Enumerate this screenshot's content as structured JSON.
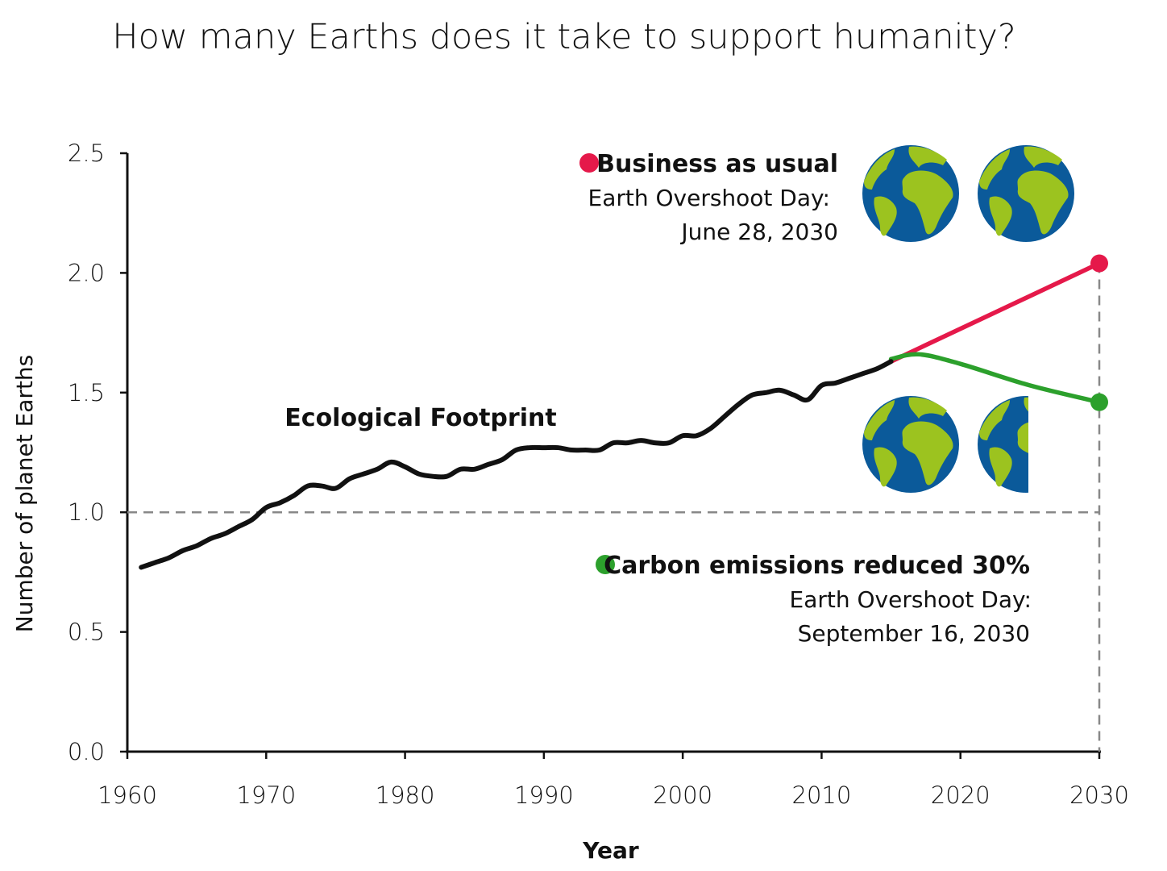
{
  "chart_data": {
    "type": "line",
    "title": "How many Earths does it take to support humanity?",
    "xlabel": "Year",
    "ylabel": "Number of planet Earths",
    "xlim": [
      1960,
      2030
    ],
    "ylim": [
      0,
      2.5
    ],
    "x_ticks": [
      "1960",
      "1970",
      "1980",
      "1990",
      "2000",
      "2010",
      "2020",
      "2030"
    ],
    "y_ticks": [
      "0.0",
      "0.5",
      "1.0",
      "1.5",
      "2.0",
      "2.5"
    ],
    "grid": false,
    "reference_line": {
      "y": 1.0,
      "style": "dashed",
      "color": "#888888"
    },
    "series": [
      {
        "name": "Ecological Footprint",
        "color": "#111111",
        "x": [
          1961,
          1962,
          1963,
          1964,
          1965,
          1966,
          1967,
          1968,
          1969,
          1970,
          1971,
          1972,
          1973,
          1974,
          1975,
          1976,
          1977,
          1978,
          1979,
          1980,
          1981,
          1982,
          1983,
          1984,
          1985,
          1986,
          1987,
          1988,
          1989,
          1990,
          1991,
          1992,
          1993,
          1994,
          1995,
          1996,
          1997,
          1998,
          1999,
          2000,
          2001,
          2002,
          2003,
          2004,
          2005,
          2006,
          2007,
          2008,
          2009,
          2010,
          2011,
          2012,
          2013,
          2014,
          2015
        ],
        "y": [
          0.77,
          0.79,
          0.81,
          0.84,
          0.86,
          0.89,
          0.91,
          0.94,
          0.97,
          1.02,
          1.04,
          1.07,
          1.11,
          1.11,
          1.1,
          1.14,
          1.16,
          1.18,
          1.21,
          1.19,
          1.16,
          1.15,
          1.15,
          1.18,
          1.18,
          1.2,
          1.22,
          1.26,
          1.27,
          1.27,
          1.27,
          1.26,
          1.26,
          1.26,
          1.29,
          1.29,
          1.3,
          1.29,
          1.29,
          1.32,
          1.32,
          1.35,
          1.4,
          1.45,
          1.49,
          1.5,
          1.51,
          1.49,
          1.47,
          1.53,
          1.54,
          1.56,
          1.58,
          1.6,
          1.63
        ]
      },
      {
        "name": "Business as usual",
        "color": "#e5194a",
        "x": [
          2015,
          2030
        ],
        "y": [
          1.63,
          2.04
        ]
      },
      {
        "name": "Carbon emissions reduced 30%",
        "color": "#2ca02c",
        "x": [
          2015,
          2017,
          2020,
          2025,
          2030
        ],
        "y": [
          1.64,
          1.66,
          1.62,
          1.53,
          1.46
        ]
      }
    ],
    "annotations": {
      "footprint_label": "Ecological Footprint",
      "bau": {
        "title": "Business as usual",
        "line1": "Earth Overshoot Day:",
        "line2": "June 28, 2030",
        "earths": 2.0
      },
      "reduced": {
        "title": "Carbon emissions reduced 30%",
        "line1": "Earth Overshoot Day:",
        "line2": "September 16, 2030",
        "earths": 1.5
      }
    },
    "globe_colors": {
      "ocean": "#0b5a9a",
      "land": "#9cc31f"
    }
  }
}
